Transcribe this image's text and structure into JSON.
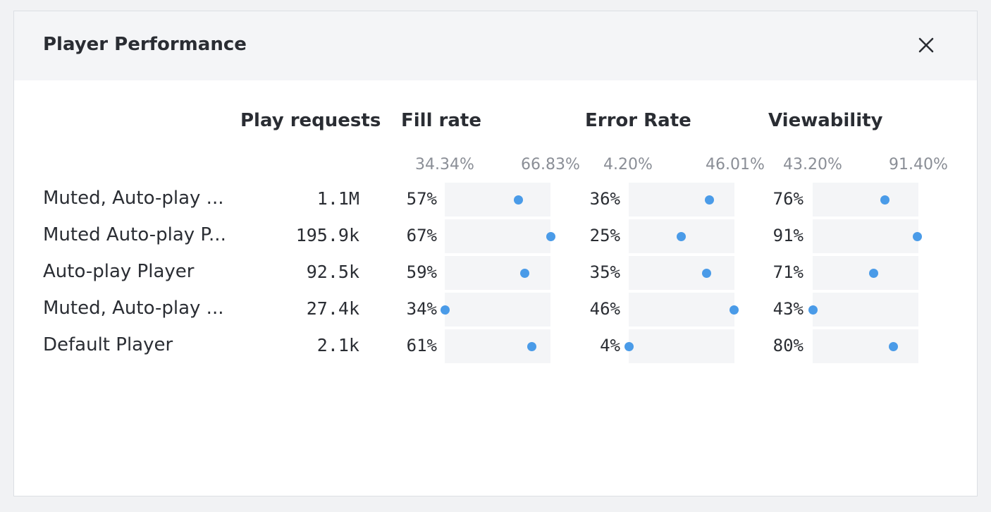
{
  "dialog": {
    "title": "Player Performance",
    "close_icon": "close-icon"
  },
  "columns": {
    "play_requests": "Play requests",
    "fill_rate": "Fill rate",
    "error_rate": "Error Rate",
    "viewability": "Viewability"
  },
  "ranges": {
    "fill_rate": {
      "min_label": "34.34%",
      "max_label": "66.83%",
      "min": 34.34,
      "max": 66.83
    },
    "error_rate": {
      "min_label": "4.20%",
      "max_label": "46.01%",
      "min": 4.2,
      "max": 46.01
    },
    "viewability": {
      "min_label": "43.20%",
      "max_label": "91.40%",
      "min": 43.2,
      "max": 91.4
    }
  },
  "rows": [
    {
      "name": "Muted, Auto-play ...",
      "play_requests": "1.1M",
      "fill_rate_label": "57%",
      "fill_rate": 57,
      "error_rate_label": "36%",
      "error_rate": 36,
      "viewability_label": "76%",
      "viewability": 76
    },
    {
      "name": "Muted Auto-play P...",
      "play_requests": "195.9k",
      "fill_rate_label": "67%",
      "fill_rate": 67,
      "error_rate_label": "25%",
      "error_rate": 25,
      "viewability_label": "91%",
      "viewability": 91
    },
    {
      "name": "Auto-play Player",
      "play_requests": "92.5k",
      "fill_rate_label": "59%",
      "fill_rate": 59,
      "error_rate_label": "35%",
      "error_rate": 35,
      "viewability_label": "71%",
      "viewability": 71
    },
    {
      "name": "Muted, Auto-play ...",
      "play_requests": "27.4k",
      "fill_rate_label": "34%",
      "fill_rate": 34,
      "error_rate_label": "46%",
      "error_rate": 46,
      "viewability_label": "43%",
      "viewability": 43
    },
    {
      "name": "Default Player",
      "play_requests": "2.1k",
      "fill_rate_label": "61%",
      "fill_rate": 61,
      "error_rate_label": "4%",
      "error_rate": 4,
      "viewability_label": "80%",
      "viewability": 80
    }
  ],
  "colors": {
    "dot": "#4a9be8",
    "track": "#f4f5f7",
    "header_bg": "#f4f5f7"
  }
}
